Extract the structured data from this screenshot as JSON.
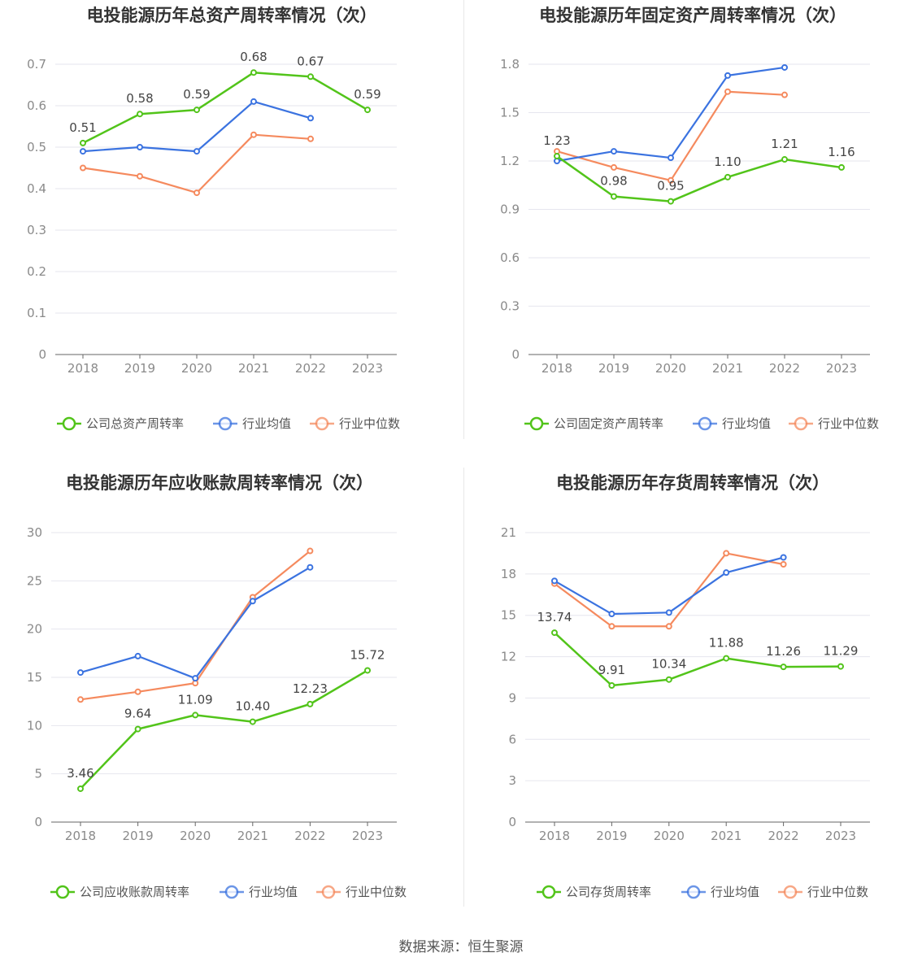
{
  "source_label": "数据来源：恒生聚源",
  "colors": {
    "company": "#52c41a",
    "avg": "#3b73e0",
    "median": "#f58a5e",
    "grid": "#e6e6ee",
    "axis": "#666666"
  },
  "legend": {
    "avg": "行业均值",
    "median": "行业中位数"
  },
  "chart_data": [
    {
      "type": "line",
      "title": "电投能源历年总资产周转率情况（次）",
      "categories": [
        "2018",
        "2019",
        "2020",
        "2021",
        "2022",
        "2023"
      ],
      "ylim": [
        0,
        0.7
      ],
      "yticks": [
        "0",
        "0.1",
        "0.2",
        "0.3",
        "0.4",
        "0.5",
        "0.6",
        "0.7"
      ],
      "series": [
        {
          "name": "公司总资产周转率",
          "key": "company",
          "values": [
            0.51,
            0.58,
            0.59,
            0.68,
            0.67,
            0.59
          ],
          "labels": [
            "0.51",
            "0.58",
            "0.59",
            "0.68",
            "0.67",
            "0.59"
          ]
        },
        {
          "name": "行业均值",
          "key": "avg",
          "values": [
            0.49,
            0.5,
            0.49,
            0.61,
            0.57,
            null
          ]
        },
        {
          "name": "行业中位数",
          "key": "median",
          "values": [
            0.45,
            0.43,
            0.39,
            0.53,
            0.52,
            null
          ]
        }
      ]
    },
    {
      "type": "line",
      "title": "电投能源历年固定资产周转率情况（次）",
      "categories": [
        "2018",
        "2019",
        "2020",
        "2021",
        "2022",
        "2023"
      ],
      "ylim": [
        0,
        1.8
      ],
      "yticks": [
        "0",
        "0.3",
        "0.6",
        "0.9",
        "1.2",
        "1.5",
        "1.8"
      ],
      "series": [
        {
          "name": "公司固定资产周转率",
          "key": "company",
          "values": [
            1.23,
            0.98,
            0.95,
            1.1,
            1.21,
            1.16
          ],
          "labels": [
            "1.23",
            "0.98",
            "0.95",
            "1.10",
            "1.21",
            "1.16"
          ]
        },
        {
          "name": "行业均值",
          "key": "avg",
          "values": [
            1.2,
            1.26,
            1.22,
            1.73,
            1.78,
            null
          ]
        },
        {
          "name": "行业中位数",
          "key": "median",
          "values": [
            1.26,
            1.16,
            1.08,
            1.63,
            1.61,
            null
          ]
        }
      ]
    },
    {
      "type": "line",
      "title": "电投能源历年应收账款周转率情况（次）",
      "categories": [
        "2018",
        "2019",
        "2020",
        "2021",
        "2022",
        "2023"
      ],
      "ylim": [
        0,
        30
      ],
      "yticks": [
        "0",
        "5",
        "10",
        "15",
        "20",
        "25",
        "30"
      ],
      "series": [
        {
          "name": "公司应收账款周转率",
          "key": "company",
          "values": [
            3.46,
            9.64,
            11.09,
            10.4,
            12.23,
            15.72
          ],
          "labels": [
            "3.46",
            "9.64",
            "11.09",
            "10.40",
            "12.23",
            "15.72"
          ]
        },
        {
          "name": "行业均值",
          "key": "avg",
          "values": [
            15.5,
            17.2,
            14.9,
            22.9,
            26.4,
            null
          ]
        },
        {
          "name": "行业中位数",
          "key": "median",
          "values": [
            12.7,
            13.5,
            14.4,
            23.3,
            28.1,
            null
          ]
        }
      ]
    },
    {
      "type": "line",
      "title": "电投能源历年存货周转率情况（次）",
      "categories": [
        "2018",
        "2019",
        "2020",
        "2021",
        "2022",
        "2023"
      ],
      "ylim": [
        0,
        21
      ],
      "yticks": [
        "0",
        "3",
        "6",
        "9",
        "12",
        "15",
        "18",
        "21"
      ],
      "series": [
        {
          "name": "公司存货周转率",
          "key": "company",
          "values": [
            13.74,
            9.91,
            10.34,
            11.88,
            11.26,
            11.29
          ],
          "labels": [
            "13.74",
            "9.91",
            "10.34",
            "11.88",
            "11.26",
            "11.29"
          ]
        },
        {
          "name": "行业均值",
          "key": "avg",
          "values": [
            17.5,
            15.1,
            15.2,
            18.1,
            19.2,
            null
          ]
        },
        {
          "name": "行业中位数",
          "key": "median",
          "values": [
            17.3,
            14.2,
            14.2,
            19.5,
            18.7,
            null
          ]
        }
      ]
    }
  ]
}
